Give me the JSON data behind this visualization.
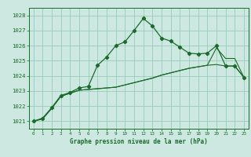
{
  "title": "Graphe pression niveau de la mer (hPa)",
  "bg_color": "#cce8e0",
  "grid_color": "#99ccbb",
  "line_color": "#1a6b2a",
  "ylim": [
    1020.5,
    1028.5
  ],
  "xlim": [
    -0.5,
    23.5
  ],
  "yticks": [
    1021,
    1022,
    1023,
    1024,
    1025,
    1026,
    1027,
    1028
  ],
  "xticks": [
    0,
    1,
    2,
    3,
    4,
    5,
    6,
    7,
    8,
    9,
    10,
    11,
    12,
    13,
    14,
    15,
    16,
    17,
    18,
    19,
    20,
    21,
    22,
    23
  ],
  "series1": [
    1021.0,
    1021.2,
    1021.9,
    1022.7,
    1022.9,
    1023.2,
    1023.3,
    1024.7,
    1025.25,
    1026.0,
    1026.25,
    1027.0,
    1027.8,
    1027.3,
    1026.5,
    1026.3,
    1025.9,
    1025.5,
    1025.45,
    1025.5,
    1026.0,
    1024.65,
    1024.65,
    1023.9
  ],
  "series2": [
    1021.0,
    1021.15,
    1021.85,
    1022.65,
    1022.85,
    1023.05,
    1023.1,
    1023.15,
    1023.2,
    1023.25,
    1023.4,
    1023.55,
    1023.7,
    1023.85,
    1024.05,
    1024.2,
    1024.35,
    1024.5,
    1024.6,
    1024.7,
    1024.75,
    1024.65,
    1024.65,
    1023.9
  ],
  "series3": [
    1021.0,
    1021.15,
    1021.85,
    1022.65,
    1022.85,
    1023.05,
    1023.1,
    1023.15,
    1023.2,
    1023.25,
    1023.4,
    1023.55,
    1023.7,
    1023.85,
    1024.05,
    1024.2,
    1024.35,
    1024.5,
    1024.6,
    1024.7,
    1025.85,
    1025.15,
    1025.15,
    1023.9
  ]
}
